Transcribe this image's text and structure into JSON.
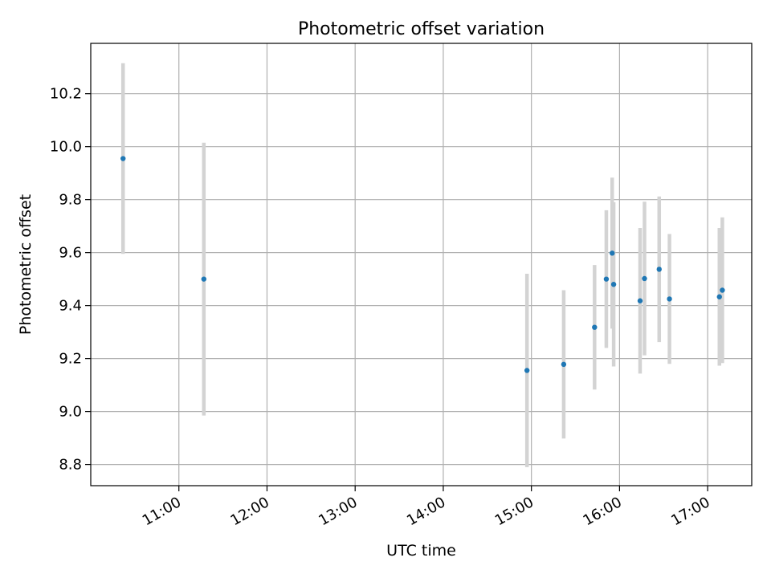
{
  "chart_data": {
    "type": "scatter",
    "title": "Photometric offset variation",
    "xlabel": "UTC time",
    "ylabel": "Photometric offset",
    "x_ticks": [
      "11:00",
      "12:00",
      "13:00",
      "14:00",
      "15:00",
      "16:00",
      "17:00"
    ],
    "y_ticks": [
      "8.8",
      "9.0",
      "9.2",
      "9.4",
      "9.6",
      "9.8",
      "10.0",
      "10.2"
    ],
    "xlim": [
      "10:00",
      "17:30"
    ],
    "ylim": [
      8.72,
      10.39
    ],
    "grid": true,
    "marker_color": "#1f77b4",
    "errorbar_color": "#d3d3d3",
    "points": [
      {
        "time": "10:22",
        "y": 9.955,
        "yerr": 0.36
      },
      {
        "time": "11:17",
        "y": 9.5,
        "yerr": 0.515
      },
      {
        "time": "14:57",
        "y": 9.155,
        "yerr": 0.365
      },
      {
        "time": "15:22",
        "y": 9.178,
        "yerr": 0.28
      },
      {
        "time": "15:43",
        "y": 9.318,
        "yerr": 0.235
      },
      {
        "time": "15:51",
        "y": 9.5,
        "yerr": 0.26
      },
      {
        "time": "15:55",
        "y": 9.598,
        "yerr": 0.285
      },
      {
        "time": "15:56",
        "y": 9.48,
        "yerr": 0.31
      },
      {
        "time": "16:14",
        "y": 9.418,
        "yerr": 0.275
      },
      {
        "time": "16:17",
        "y": 9.502,
        "yerr": 0.29
      },
      {
        "time": "16:27",
        "y": 9.537,
        "yerr": 0.275
      },
      {
        "time": "16:34",
        "y": 9.425,
        "yerr": 0.245
      },
      {
        "time": "17:08",
        "y": 9.433,
        "yerr": 0.26
      },
      {
        "time": "17:10",
        "y": 9.458,
        "yerr": 0.275
      }
    ]
  }
}
